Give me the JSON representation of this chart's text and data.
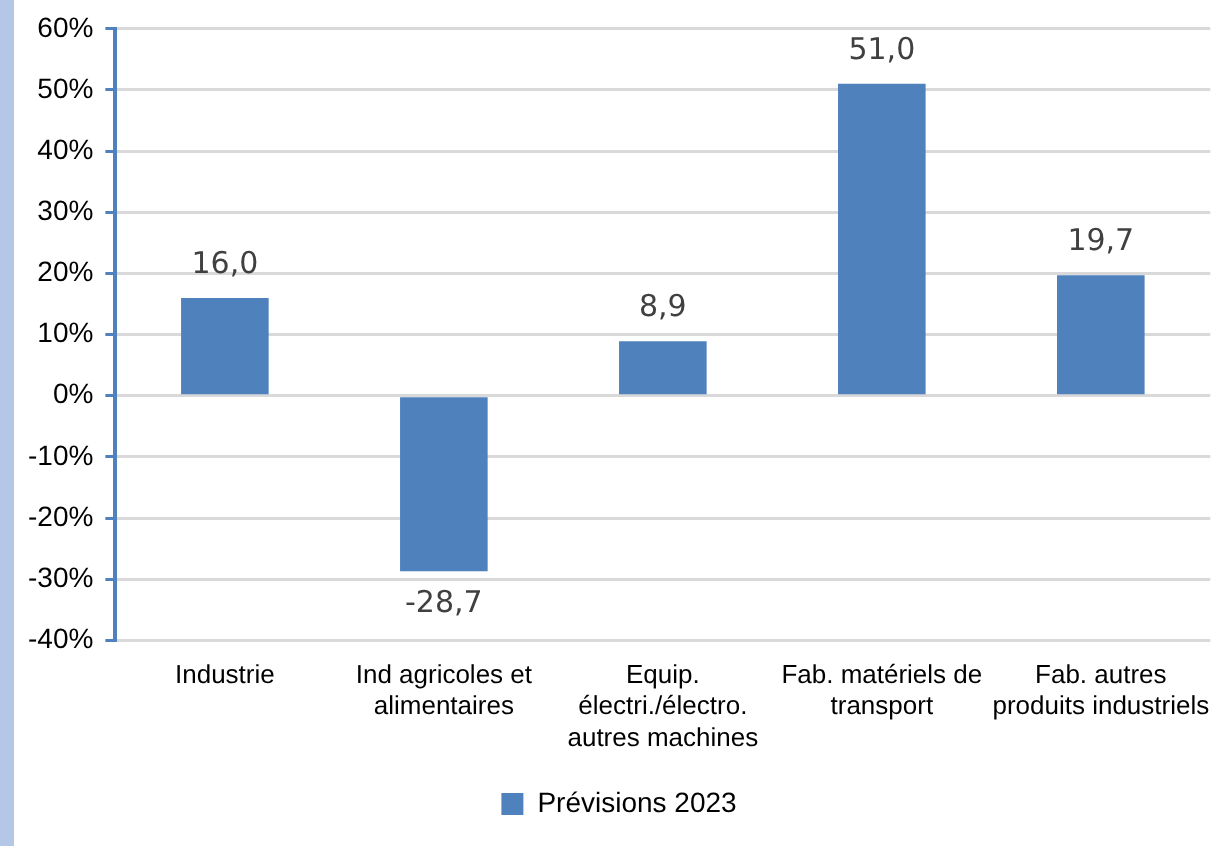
{
  "chart_data": {
    "type": "bar",
    "categories": [
      "Industrie",
      "Ind agricoles et alimentaires",
      "Equip. électri./électro. autres machines",
      "Fab. matériels de transport",
      "Fab. autres produits industriels"
    ],
    "series": [
      {
        "name": "Prévisions 2023",
        "color": "#4f81bd",
        "values": [
          16.0,
          -28.7,
          8.9,
          51.0,
          19.7
        ],
        "value_labels": [
          "16,0",
          "-28,7",
          "8,9",
          "51,0",
          "19,7"
        ]
      }
    ],
    "ylim": [
      -40,
      60
    ],
    "yticks": [
      {
        "value": -40,
        "label": "-40%"
      },
      {
        "value": -30,
        "label": "-30%"
      },
      {
        "value": -20,
        "label": "-20%"
      },
      {
        "value": -10,
        "label": "-10%"
      },
      {
        "value": 0,
        "label": "0%"
      },
      {
        "value": 10,
        "label": "10%"
      },
      {
        "value": 20,
        "label": "20%"
      },
      {
        "value": 30,
        "label": "30%"
      },
      {
        "value": 40,
        "label": "40%"
      },
      {
        "value": 50,
        "label": "50%"
      },
      {
        "value": 60,
        "label": "60%"
      }
    ],
    "grid": "y",
    "legend": "bottom"
  }
}
